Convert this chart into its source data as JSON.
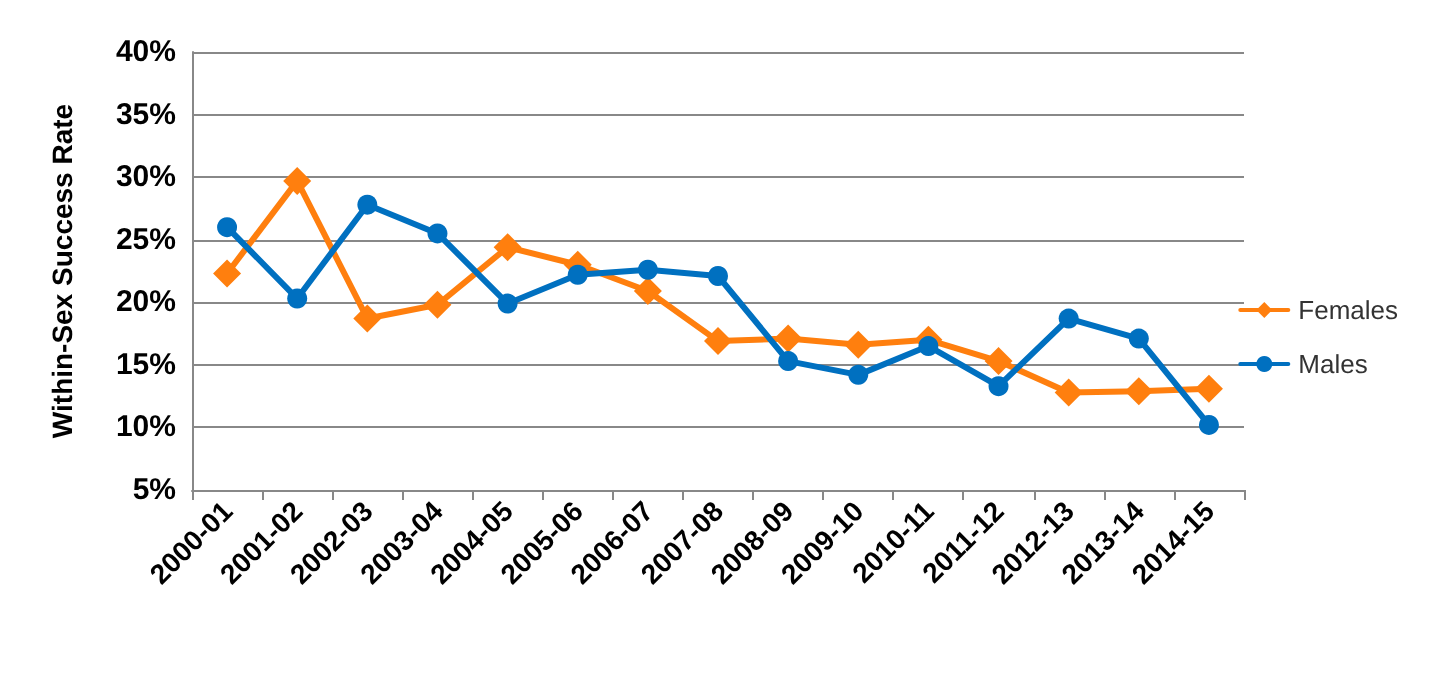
{
  "chart_data": {
    "type": "line",
    "ylabel": "Within-Sex Success Rate",
    "categories": [
      "2000-01",
      "2001-02",
      "2002-03",
      "2003-04",
      "2004-05",
      "2005-06",
      "2006-07",
      "2007-08",
      "2008-09",
      "2009-10",
      "2010-11",
      "2011-12",
      "2012-13",
      "2013-14",
      "2014-15"
    ],
    "series": [
      {
        "name": "Females",
        "color": "#ff7f0e",
        "marker": "diamond",
        "values": [
          22.3,
          29.7,
          18.7,
          19.8,
          24.4,
          23.0,
          20.9,
          16.9,
          17.1,
          16.6,
          17.0,
          15.3,
          12.8,
          12.9,
          13.1
        ]
      },
      {
        "name": "Males",
        "color": "#0070c0",
        "marker": "circle",
        "values": [
          26.0,
          20.3,
          27.8,
          25.5,
          19.9,
          22.2,
          22.6,
          22.1,
          15.3,
          14.2,
          16.5,
          13.3,
          18.7,
          17.1,
          10.2
        ]
      }
    ],
    "ylim": [
      5,
      40
    ],
    "yticks": [
      {
        "value": 5,
        "label": "5%"
      },
      {
        "value": 10,
        "label": "10%"
      },
      {
        "value": 15,
        "label": "15%"
      },
      {
        "value": 20,
        "label": "20%"
      },
      {
        "value": 25,
        "label": "25%"
      },
      {
        "value": 30,
        "label": "30%"
      },
      {
        "value": 35,
        "label": "35%"
      },
      {
        "value": 40,
        "label": "40%"
      }
    ],
    "grid": "y",
    "legend": "right",
    "line_style": "solid"
  }
}
